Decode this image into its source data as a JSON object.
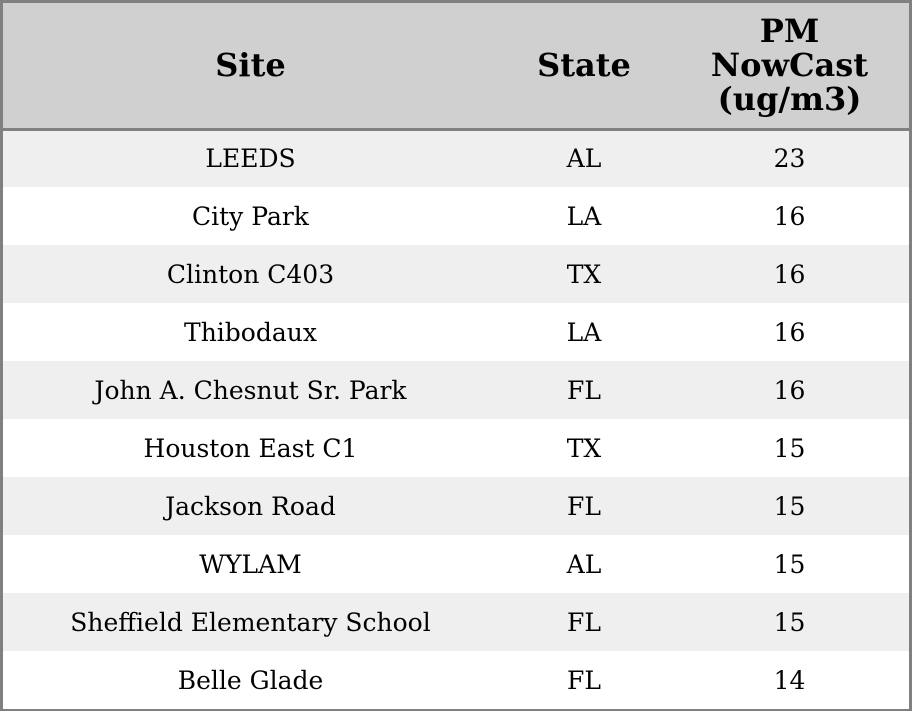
{
  "chart_data": {
    "type": "table",
    "columns": [
      "Site",
      "State",
      "PM NowCast (ug/m3)"
    ],
    "rows": [
      {
        "site": "LEEDS",
        "state": "AL",
        "pm": 23
      },
      {
        "site": "City Park",
        "state": "LA",
        "pm": 16
      },
      {
        "site": "Clinton C403",
        "state": "TX",
        "pm": 16
      },
      {
        "site": "Thibodaux",
        "state": "LA",
        "pm": 16
      },
      {
        "site": "John A. Chesnut Sr. Park",
        "state": "FL",
        "pm": 16
      },
      {
        "site": "Houston East C1",
        "state": "TX",
        "pm": 15
      },
      {
        "site": "Jackson Road",
        "state": "FL",
        "pm": 15
      },
      {
        "site": "WYLAM",
        "state": "AL",
        "pm": 15
      },
      {
        "site": "Sheffield Elementary School",
        "state": "FL",
        "pm": 15
      },
      {
        "site": "Belle Glade",
        "state": "FL",
        "pm": 14
      }
    ]
  },
  "colors": {
    "header_background": "#d0d0d0",
    "row_stripe": "#efefef",
    "row_plain": "#ffffff",
    "border": "#808080"
  }
}
